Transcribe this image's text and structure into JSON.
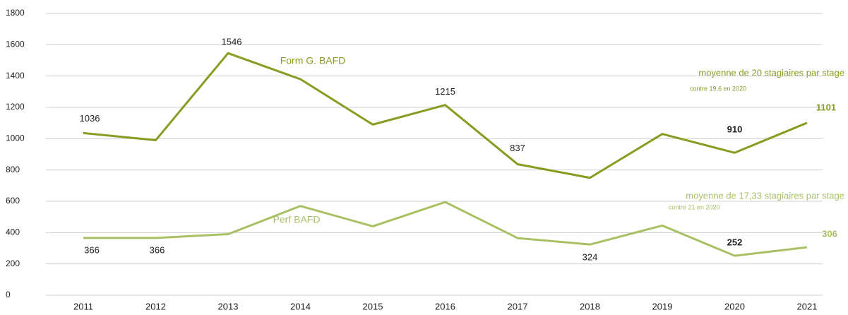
{
  "chart_data": {
    "type": "line",
    "categories": [
      "2011",
      "2012",
      "2013",
      "2014",
      "2015",
      "2016",
      "2017",
      "2018",
      "2019",
      "2020",
      "2021"
    ],
    "series": [
      {
        "name": "Form G. BAFD",
        "color": "#8a9b22",
        "values": [
          1036,
          990,
          1546,
          1380,
          1090,
          1215,
          837,
          750,
          1030,
          910,
          1101
        ],
        "value_labels": [
          "1036",
          null,
          "1546",
          null,
          null,
          "1215",
          "837",
          null,
          null,
          "910",
          "1101"
        ]
      },
      {
        "name": "Perf BAFD",
        "color": "#a9c064",
        "values": [
          366,
          366,
          390,
          570,
          440,
          595,
          365,
          324,
          445,
          252,
          306
        ],
        "value_labels": [
          "366",
          "366",
          null,
          null,
          null,
          null,
          null,
          "324",
          null,
          "252",
          "306"
        ]
      }
    ],
    "annotations": [
      "moyenne de 20 stagiaires par stage",
      "contre 19,6 en 2020",
      "moyenne de 17,33 stagiaires par stage",
      "contre 21 en 2020"
    ],
    "ylim": [
      0,
      1800
    ],
    "yticks": [
      0,
      200,
      400,
      600,
      800,
      1000,
      1200,
      1400,
      1600,
      1800
    ],
    "grid": true
  }
}
